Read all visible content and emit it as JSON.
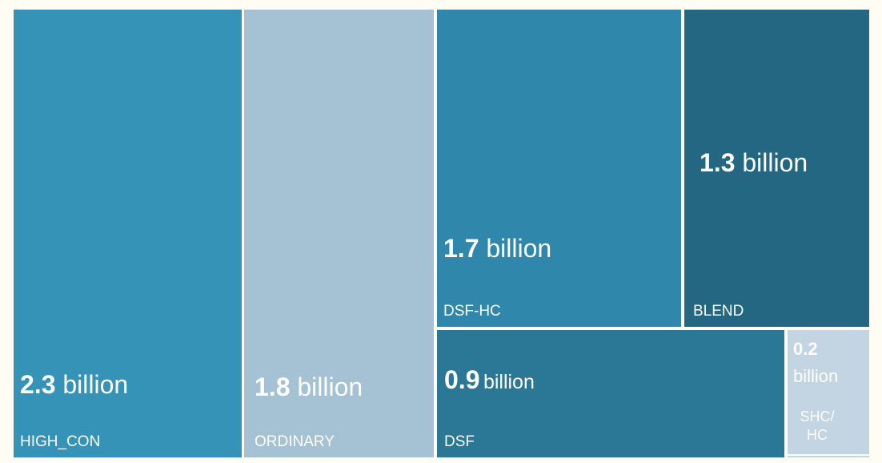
{
  "chart_data": {
    "type": "treemap",
    "unit": "billion",
    "items": [
      {
        "name": "HIGH_CON",
        "value": 2.3,
        "value_text": "2.3",
        "unit_text": "billion",
        "color": "#3593b8"
      },
      {
        "name": "ORDINARY",
        "value": 1.8,
        "value_text": "1.8",
        "unit_text": "billion",
        "color": "#a5c2d5"
      },
      {
        "name": "DSF-HC",
        "value": 1.7,
        "value_text": "1.7",
        "unit_text": "billion",
        "color": "#2f88ab"
      },
      {
        "name": "BLEND",
        "value": 1.3,
        "value_text": "1.3",
        "unit_text": "billion",
        "color": "#236782"
      },
      {
        "name": "DSF",
        "value": 0.9,
        "value_text": "0.9",
        "unit_text": "billion",
        "color": "#2a7896"
      },
      {
        "name": "SHC/\nHC",
        "value": 0.2,
        "value_text": "0.2",
        "unit_text": "billion",
        "color": "#c3d5e2"
      }
    ]
  }
}
